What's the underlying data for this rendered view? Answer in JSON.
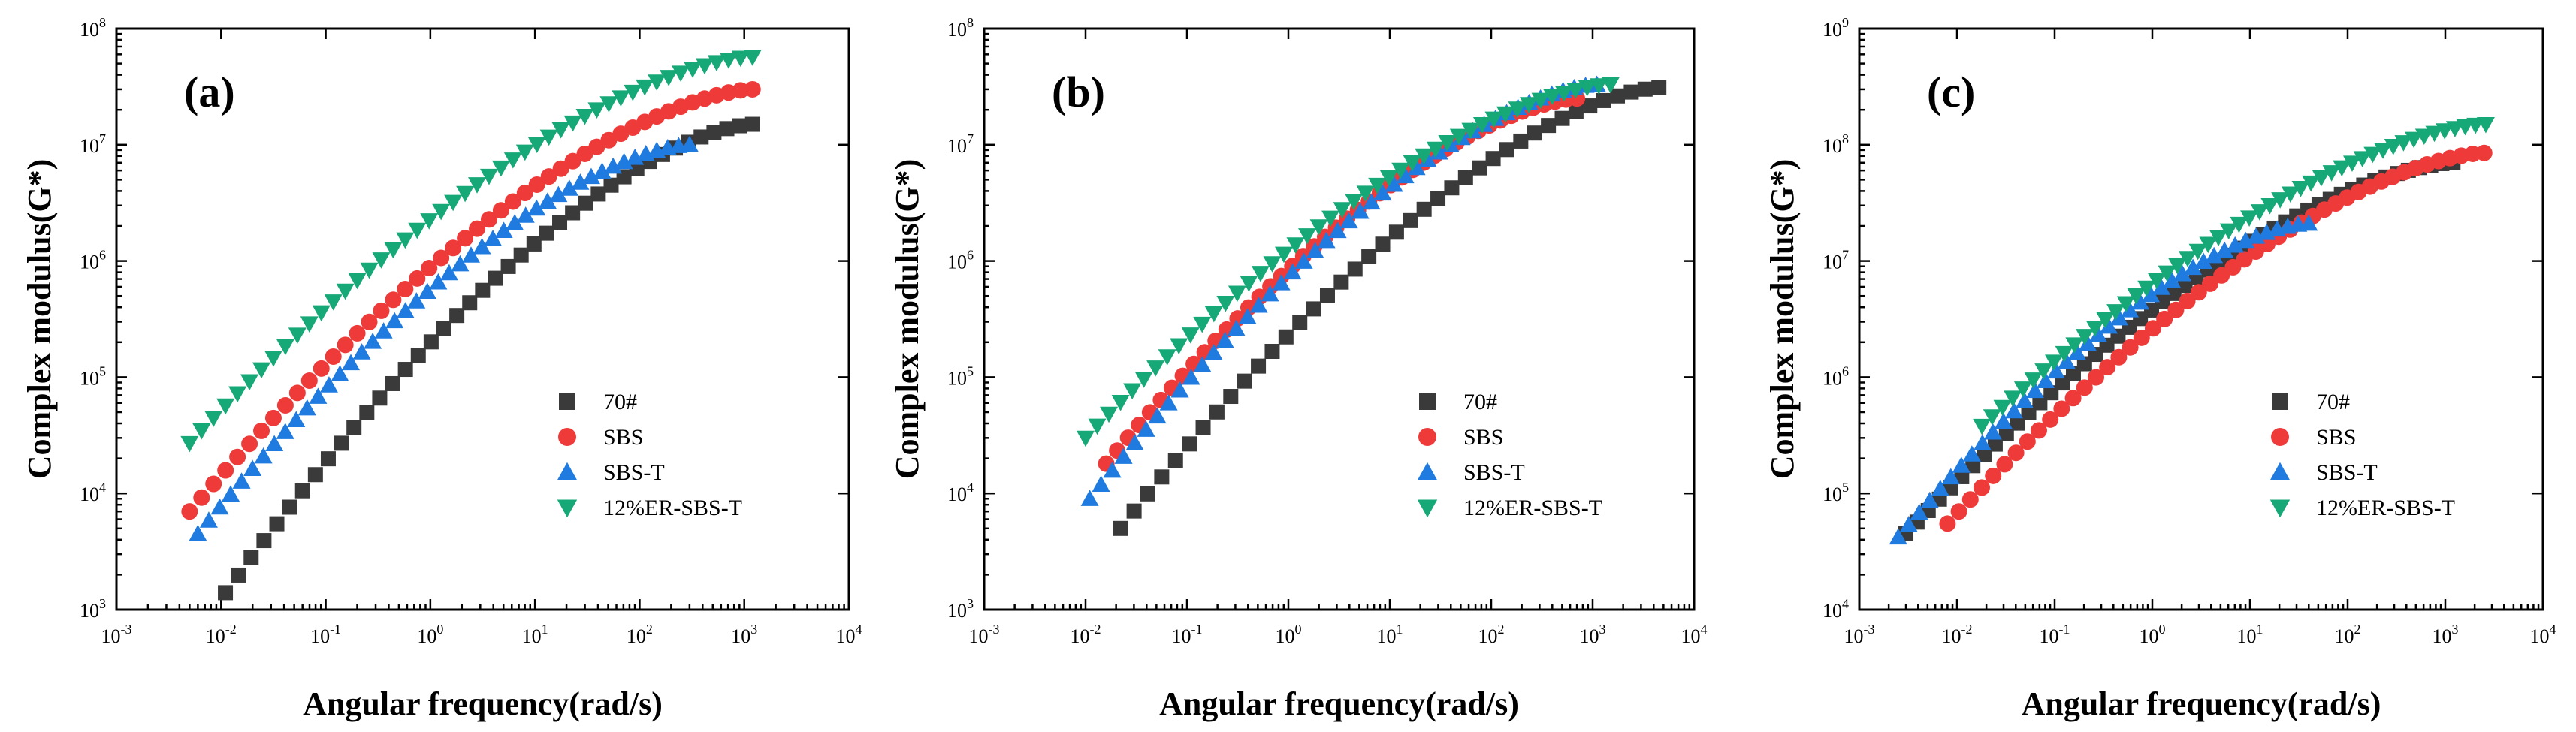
{
  "chart_data": [
    {
      "type": "scatter",
      "panel_label": "(a)",
      "xlabel": "Angular frequency(rad/s)",
      "ylabel": "Complex modulus(G*)",
      "xscale": "log",
      "yscale": "log",
      "xlim": [
        0.001,
        10000
      ],
      "ylim": [
        1000,
        100000000
      ],
      "x_ticks": [
        {
          "base": "10",
          "exp": "-3"
        },
        {
          "base": "10",
          "exp": "-2"
        },
        {
          "base": "10",
          "exp": "-1"
        },
        {
          "base": "10",
          "exp": "0"
        },
        {
          "base": "10",
          "exp": "1"
        },
        {
          "base": "10",
          "exp": "2"
        },
        {
          "base": "10",
          "exp": "3"
        },
        {
          "base": "10",
          "exp": "4"
        }
      ],
      "y_ticks": [
        {
          "base": "10",
          "exp": "3"
        },
        {
          "base": "10",
          "exp": "4"
        },
        {
          "base": "10",
          "exp": "5"
        },
        {
          "base": "10",
          "exp": "6"
        },
        {
          "base": "10",
          "exp": "7"
        },
        {
          "base": "10",
          "exp": "8"
        }
      ],
      "legend_position": "center-right",
      "series": [
        {
          "name": "70#",
          "marker": "square",
          "color": "#3a3a3a",
          "x_range": [
            0.011,
            1200
          ],
          "y_range": [
            1400,
            15000000
          ],
          "n": 42
        },
        {
          "name": "SBS",
          "marker": "circle",
          "color": "#ef3a3a",
          "x_range": [
            0.005,
            1200
          ],
          "y_range": [
            7000,
            30000000
          ],
          "n": 48
        },
        {
          "name": "SBS-T",
          "marker": "triangle-up",
          "color": "#1f7be0",
          "x_range": [
            0.006,
            300
          ],
          "y_range": [
            4500,
            10000000
          ],
          "n": 46
        },
        {
          "name": "12%ER-SBS-T",
          "marker": "triangle-down",
          "color": "#17a878",
          "x_range": [
            0.005,
            1200
          ],
          "y_range": [
            27000,
            57000000
          ],
          "n": 48
        }
      ]
    },
    {
      "type": "scatter",
      "panel_label": "(b)",
      "xlabel": "Angular frequency(rad/s)",
      "ylabel": "Complex modulus(G*)",
      "xscale": "log",
      "yscale": "log",
      "xlim": [
        0.001,
        10000
      ],
      "ylim": [
        1000,
        100000000
      ],
      "x_ticks": [
        {
          "base": "10",
          "exp": "-3"
        },
        {
          "base": "10",
          "exp": "-2"
        },
        {
          "base": "10",
          "exp": "-1"
        },
        {
          "base": "10",
          "exp": "0"
        },
        {
          "base": "10",
          "exp": "1"
        },
        {
          "base": "10",
          "exp": "2"
        },
        {
          "base": "10",
          "exp": "3"
        },
        {
          "base": "10",
          "exp": "4"
        }
      ],
      "y_ticks": [
        {
          "base": "10",
          "exp": "3"
        },
        {
          "base": "10",
          "exp": "4"
        },
        {
          "base": "10",
          "exp": "5"
        },
        {
          "base": "10",
          "exp": "6"
        },
        {
          "base": "10",
          "exp": "7"
        },
        {
          "base": "10",
          "exp": "8"
        }
      ],
      "legend_position": "center-right",
      "series": [
        {
          "name": "70#",
          "marker": "square",
          "color": "#3a3a3a",
          "x_range": [
            0.022,
            4500
          ],
          "y_range": [
            5000,
            31000000
          ],
          "n": 40
        },
        {
          "name": "SBS",
          "marker": "circle",
          "color": "#ef3a3a",
          "x_range": [
            0.016,
            700
          ],
          "y_range": [
            18000,
            25000000
          ],
          "n": 44
        },
        {
          "name": "SBS-T",
          "marker": "triangle-up",
          "color": "#1f7be0",
          "x_range": [
            0.011,
            1100
          ],
          "y_range": [
            9000,
            33000000
          ],
          "n": 46
        },
        {
          "name": "12%ER-SBS-T",
          "marker": "triangle-down",
          "color": "#17a878",
          "x_range": [
            0.01,
            1500
          ],
          "y_range": [
            30000,
            33000000
          ],
          "n": 46
        }
      ]
    },
    {
      "type": "scatter",
      "panel_label": "(c)",
      "xlabel": "Angular frequency(rad/s)",
      "ylabel": "Complex modulus(G*)",
      "xscale": "log",
      "yscale": "log",
      "xlim": [
        0.001,
        10000
      ],
      "ylim": [
        10000,
        1000000000
      ],
      "x_ticks": [
        {
          "base": "10",
          "exp": "-3"
        },
        {
          "base": "10",
          "exp": "-2"
        },
        {
          "base": "10",
          "exp": "-1"
        },
        {
          "base": "10",
          "exp": "0"
        },
        {
          "base": "10",
          "exp": "1"
        },
        {
          "base": "10",
          "exp": "2"
        },
        {
          "base": "10",
          "exp": "3"
        },
        {
          "base": "10",
          "exp": "4"
        }
      ],
      "y_ticks": [
        {
          "base": "10",
          "exp": "4"
        },
        {
          "base": "10",
          "exp": "5"
        },
        {
          "base": "10",
          "exp": "6"
        },
        {
          "base": "10",
          "exp": "7"
        },
        {
          "base": "10",
          "exp": "8"
        },
        {
          "base": "10",
          "exp": "9"
        }
      ],
      "legend_position": "center-right",
      "series": [
        {
          "name": "70#",
          "marker": "square",
          "color": "#3a3a3a",
          "x_range": [
            0.003,
            1200
          ],
          "y_range": [
            45000,
            70000000
          ],
          "n": 50
        },
        {
          "name": "SBS",
          "marker": "circle",
          "color": "#ef3a3a",
          "x_range": [
            0.008,
            2500
          ],
          "y_range": [
            55000,
            85000000
          ],
          "n": 48
        },
        {
          "name": "SBS-T",
          "marker": "triangle-up",
          "color": "#1f7be0",
          "x_range": [
            0.0025,
            40
          ],
          "y_range": [
            42000,
            21000000
          ],
          "n": 40
        },
        {
          "name": "12%ER-SBS-T",
          "marker": "triangle-down",
          "color": "#17a878",
          "x_range": [
            0.018,
            2600
          ],
          "y_range": [
            380000,
            150000000
          ],
          "n": 50
        }
      ]
    }
  ]
}
